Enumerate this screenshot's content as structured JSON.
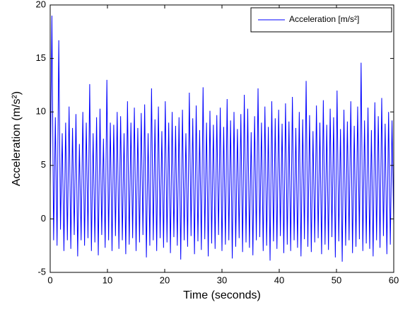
{
  "chart_data": {
    "type": "line",
    "xlabel": "Time (seconds)",
    "ylabel": "Acceleration (m/s²)",
    "xlim": [
      0,
      60
    ],
    "xticks": [
      0,
      10,
      20,
      30,
      40,
      50,
      60
    ],
    "ylim": [
      -5,
      20
    ],
    "yticks": [
      -5,
      0,
      5,
      10,
      15,
      20
    ],
    "legend": "upper right",
    "grid": false,
    "x": [
      0,
      0.3,
      0.6,
      0.9,
      1.2,
      1.5,
      1.8,
      2.1,
      2.4,
      2.7,
      3,
      3.3,
      3.6,
      3.9,
      4.2,
      4.5,
      4.8,
      5.1,
      5.4,
      5.7,
      6,
      6.3,
      6.6,
      6.9,
      7.2,
      7.5,
      7.8,
      8.1,
      8.4,
      8.7,
      9,
      9.3,
      9.6,
      9.9,
      10.2,
      10.5,
      10.8,
      11.1,
      11.4,
      11.7,
      12,
      12.3,
      12.6,
      12.9,
      13.2,
      13.5,
      13.8,
      14.1,
      14.4,
      14.7,
      15,
      15.3,
      15.6,
      15.9,
      16.2,
      16.5,
      16.8,
      17.1,
      17.4,
      17.7,
      18,
      18.3,
      18.6,
      18.9,
      19.2,
      19.5,
      19.8,
      20.1,
      20.4,
      20.7,
      21,
      21.3,
      21.6,
      21.9,
      22.2,
      22.5,
      22.8,
      23.1,
      23.4,
      23.7,
      24,
      24.3,
      24.6,
      24.9,
      25.2,
      25.5,
      25.8,
      26.1,
      26.4,
      26.7,
      27,
      27.3,
      27.6,
      27.9,
      28.2,
      28.5,
      28.8,
      29.1,
      29.4,
      29.7,
      30,
      30.3,
      30.6,
      30.9,
      31.2,
      31.5,
      31.8,
      32.1,
      32.4,
      32.7,
      33,
      33.3,
      33.6,
      33.9,
      34.2,
      34.5,
      34.8,
      35.1,
      35.4,
      35.7,
      36,
      36.3,
      36.6,
      36.9,
      37.2,
      37.5,
      37.8,
      38.1,
      38.4,
      38.7,
      39,
      39.3,
      39.6,
      39.9,
      40.2,
      40.5,
      40.8,
      41.1,
      41.4,
      41.7,
      42,
      42.3,
      42.6,
      42.9,
      43.2,
      43.5,
      43.8,
      44.1,
      44.4,
      44.7,
      45,
      45.3,
      45.6,
      45.9,
      46.2,
      46.5,
      46.8,
      47.1,
      47.4,
      47.7,
      48,
      48.3,
      48.6,
      48.9,
      49.2,
      49.5,
      49.8,
      50.1,
      50.4,
      50.7,
      51,
      51.3,
      51.6,
      51.9,
      52.2,
      52.5,
      52.8,
      53.1,
      53.4,
      53.7,
      54,
      54.3,
      54.6,
      54.9,
      55.2,
      55.5,
      55.8,
      56.1,
      56.4,
      56.7,
      57,
      57.3,
      57.6,
      57.9,
      58.2,
      58.5,
      58.8,
      59.1,
      59.4,
      59.7,
      60
    ],
    "series": [
      {
        "name": "Acceleration [m/s²]",
        "color": "#0000ff",
        "values": [
          3,
          19,
          -2,
          9.5,
          -2.5,
          16.7,
          -1,
          8,
          -3,
          9,
          -2,
          10.5,
          -2.8,
          8.5,
          -1.5,
          9.8,
          -3.5,
          7,
          -2,
          10,
          -2.5,
          9,
          -1.8,
          12.6,
          -3,
          8,
          -2.2,
          9.5,
          -3.4,
          10.3,
          -1.5,
          7.5,
          -2.7,
          13,
          -2,
          9,
          -3,
          8.8,
          -1.6,
          10,
          -2.8,
          9.6,
          -2,
          8,
          -3.3,
          11,
          -2.4,
          9,
          -1.8,
          10.4,
          -3,
          8.5,
          -2.2,
          9.9,
          -1.5,
          10.7,
          -3.6,
          8,
          -2.5,
          12.2,
          -2,
          9.3,
          -3,
          10.5,
          -1.8,
          8.2,
          -2.7,
          11,
          -2.2,
          9,
          -3.2,
          10,
          -1.7,
          8.7,
          -2.5,
          9.5,
          -3.8,
          10.2,
          -2,
          8,
          -2.6,
          11.8,
          -1.6,
          9.4,
          -3.3,
          10.6,
          -2.1,
          8.3,
          -2.9,
          12.3,
          -1.9,
          9,
          -3.5,
          10.1,
          -2.3,
          8.8,
          -2.8,
          9.7,
          -1.5,
          10.4,
          -3,
          8.6,
          -2.4,
          11.2,
          -2,
          9.2,
          -3.7,
          10,
          -2.6,
          8.4,
          -1.8,
          9.8,
          -3.1,
          11.6,
          -2.2,
          10.3,
          -2.7,
          8.1,
          -3.4,
          9.6,
          -2,
          12.2,
          -1.7,
          9,
          -3,
          10.5,
          -2.5,
          8.6,
          -3.9,
          11,
          -2.1,
          9.4,
          -2.8,
          10.2,
          -1.6,
          8.9,
          -3.2,
          10.8,
          -2.4,
          9.1,
          -3,
          11.4,
          -2,
          8.5,
          -2.7,
          10,
          -3.5,
          9.3,
          -1.9,
          12.9,
          -2.6,
          9.7,
          -3.1,
          8.2,
          -2.2,
          10.6,
          -1.8,
          9,
          -3.3,
          11.1,
          -2.4,
          8.8,
          -2.9,
          10.3,
          -1.7,
          9.5,
          -3.6,
          12,
          -2.1,
          8.4,
          -4,
          10.2,
          -2.5,
          9.1,
          -2,
          11,
          -3.2,
          8.7,
          -2.6,
          10.5,
          -1.9,
          14.6,
          -3,
          9.2,
          -2.3,
          10.4,
          -2.8,
          8.3,
          -3.5,
          10.9,
          -2,
          9.6,
          -2.7,
          11.3,
          -1.6,
          8.9,
          -3.3,
          10,
          -2.4,
          9.2,
          -0.5
        ]
      }
    ]
  }
}
